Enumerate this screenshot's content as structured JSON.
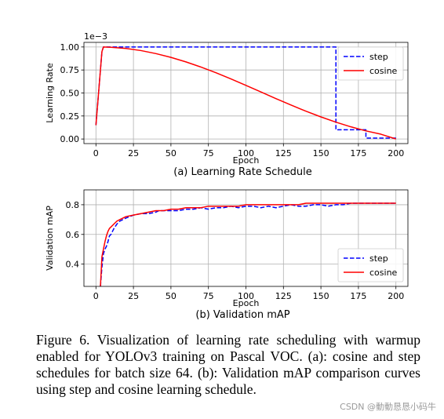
{
  "chart_data": [
    {
      "type": "line",
      "subcaption": "(a) Learning Rate Schedule",
      "xlabel": "Epoch",
      "ylabel": "Learning Rate",
      "offset_text": "1e−3",
      "xlim": [
        -8,
        208
      ],
      "ylim": [
        -0.05,
        1.05
      ],
      "xticks": [
        0,
        25,
        50,
        75,
        100,
        125,
        150,
        175,
        200
      ],
      "yticks": [
        0.0,
        0.25,
        0.5,
        0.75,
        1.0
      ],
      "ytick_labels": [
        "0.00",
        "0.25",
        "0.50",
        "0.75",
        "1.00"
      ],
      "grid": true,
      "legend": "top-right",
      "series": [
        {
          "name": "step",
          "color": "#0000ff",
          "style": "dashed",
          "x": [
            0,
            1,
            2,
            3,
            4,
            5,
            160,
            160,
            180,
            180,
            200
          ],
          "y": [
            0.15,
            0.35,
            0.55,
            0.75,
            0.95,
            1.0,
            1.0,
            0.1,
            0.1,
            0.01,
            0.01
          ]
        },
        {
          "name": "cosine",
          "color": "#ff0000",
          "style": "solid",
          "x": [
            0,
            1,
            2,
            3,
            4,
            5,
            10,
            20,
            30,
            40,
            50,
            60,
            70,
            80,
            90,
            100,
            110,
            120,
            130,
            140,
            150,
            160,
            170,
            180,
            190,
            200
          ],
          "y": [
            0.15,
            0.35,
            0.55,
            0.75,
            0.95,
            1.0,
            0.997,
            0.984,
            0.961,
            0.928,
            0.887,
            0.838,
            0.782,
            0.72,
            0.653,
            0.583,
            0.511,
            0.439,
            0.369,
            0.302,
            0.24,
            0.183,
            0.132,
            0.088,
            0.052,
            0.0
          ]
        }
      ]
    },
    {
      "type": "line",
      "subcaption": "(b) Validation mAP",
      "xlabel": "Epoch",
      "ylabel": "Validation mAP",
      "xlim": [
        -8,
        208
      ],
      "ylim": [
        0.25,
        0.9
      ],
      "xticks": [
        0,
        25,
        50,
        75,
        100,
        125,
        150,
        175,
        200
      ],
      "yticks": [
        0.4,
        0.6,
        0.8
      ],
      "ytick_labels": [
        "0.4",
        "0.6",
        "0.8"
      ],
      "grid": true,
      "legend": "bottom-right",
      "series": [
        {
          "name": "step",
          "color": "#0000ff",
          "style": "dashed",
          "x": [
            3,
            4,
            5,
            6,
            7,
            8,
            9,
            10,
            12,
            14,
            16,
            18,
            20,
            25,
            30,
            35,
            40,
            42,
            45,
            50,
            55,
            60,
            65,
            70,
            75,
            80,
            85,
            90,
            95,
            100,
            105,
            110,
            115,
            120,
            125,
            130,
            135,
            140,
            145,
            150,
            155,
            160,
            165,
            170,
            175,
            180,
            185,
            190,
            195,
            200
          ],
          "y": [
            0.25,
            0.38,
            0.47,
            0.5,
            0.52,
            0.55,
            0.59,
            0.6,
            0.64,
            0.67,
            0.69,
            0.7,
            0.71,
            0.73,
            0.74,
            0.74,
            0.75,
            0.76,
            0.76,
            0.76,
            0.76,
            0.77,
            0.77,
            0.78,
            0.77,
            0.78,
            0.78,
            0.79,
            0.78,
            0.79,
            0.79,
            0.78,
            0.79,
            0.78,
            0.79,
            0.8,
            0.79,
            0.79,
            0.8,
            0.8,
            0.79,
            0.8,
            0.8,
            0.81,
            0.81,
            0.81,
            0.81,
            0.81,
            0.81,
            0.81
          ]
        },
        {
          "name": "cosine",
          "color": "#ff0000",
          "style": "solid",
          "x": [
            3,
            4,
            5,
            6,
            7,
            8,
            9,
            10,
            12,
            14,
            16,
            18,
            20,
            25,
            30,
            35,
            40,
            45,
            50,
            55,
            60,
            65,
            70,
            75,
            80,
            85,
            90,
            95,
            100,
            105,
            110,
            115,
            120,
            125,
            130,
            135,
            140,
            145,
            150,
            155,
            160,
            165,
            170,
            175,
            180,
            185,
            190,
            195,
            200
          ],
          "y": [
            0.25,
            0.45,
            0.5,
            0.55,
            0.59,
            0.62,
            0.64,
            0.65,
            0.67,
            0.69,
            0.7,
            0.71,
            0.72,
            0.73,
            0.74,
            0.75,
            0.76,
            0.76,
            0.77,
            0.77,
            0.78,
            0.78,
            0.78,
            0.79,
            0.79,
            0.79,
            0.79,
            0.79,
            0.8,
            0.8,
            0.8,
            0.8,
            0.8,
            0.8,
            0.8,
            0.8,
            0.81,
            0.81,
            0.81,
            0.81,
            0.81,
            0.81,
            0.81,
            0.81,
            0.81,
            0.81,
            0.81,
            0.81,
            0.81
          ]
        }
      ]
    }
  ],
  "caption": "Figure 6. Visualization of learning rate scheduling with warmup enabled for YOLOv3 training on Pascal VOC. (a): cosine and step schedules for batch size 64. (b): Validation mAP comparison curves using step and cosine learning schedule.",
  "watermark": "CSDN @動動恳恳小码牛"
}
